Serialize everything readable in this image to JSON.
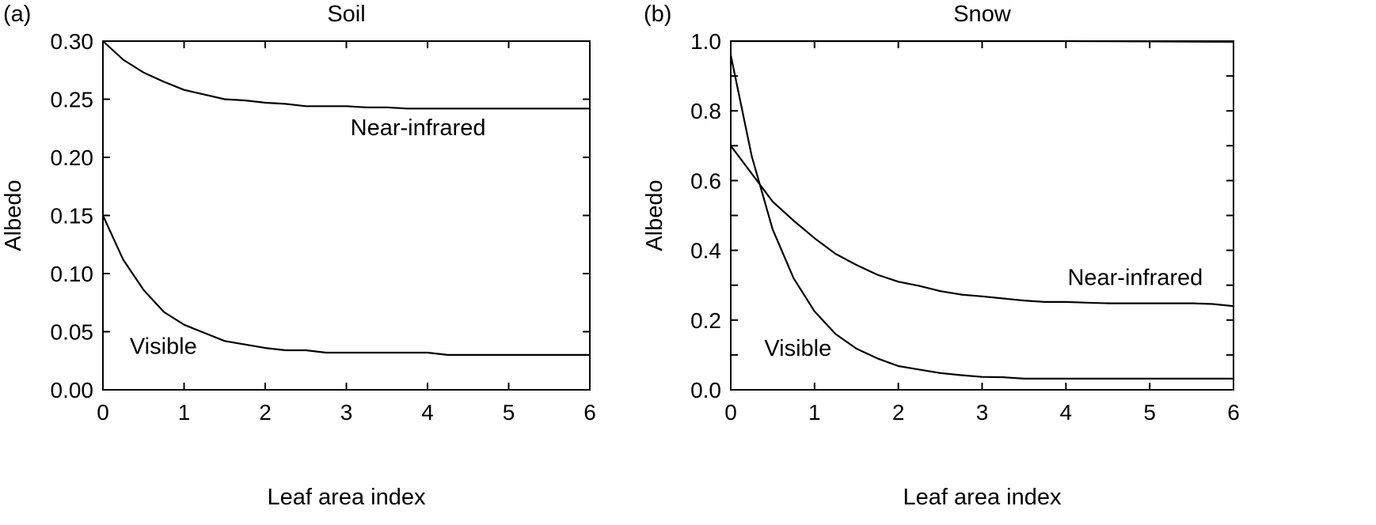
{
  "chart_data": [
    {
      "type": "line",
      "panel_label": "(a)",
      "title": "Soil",
      "xlabel": "Leaf area index",
      "ylabel": "Albedo",
      "xlim": [
        0,
        6
      ],
      "ylim": [
        0,
        0.3
      ],
      "x_ticks": [
        0,
        1,
        2,
        3,
        4,
        5,
        6
      ],
      "x_tick_labels": [
        "0",
        "1",
        "2",
        "3",
        "4",
        "5",
        "6"
      ],
      "y_ticks": [
        0,
        0.05,
        0.1,
        0.15,
        0.2,
        0.25,
        0.3
      ],
      "y_tick_labels": [
        "0.00",
        "0.05",
        "0.10",
        "0.15",
        "0.20",
        "0.25",
        "0.30"
      ],
      "series": [
        {
          "name": "Near-infrared",
          "x": [
            0,
            0.25,
            0.5,
            0.75,
            1,
            1.25,
            1.5,
            1.75,
            2,
            2.25,
            2.5,
            2.75,
            3,
            3.25,
            3.5,
            3.75,
            4,
            4.25,
            4.5,
            4.75,
            5,
            5.25,
            5.5,
            5.75,
            6
          ],
          "y": [
            0.3,
            0.284,
            0.273,
            0.265,
            0.258,
            0.254,
            0.25,
            0.249,
            0.247,
            0.246,
            0.244,
            0.244,
            0.244,
            0.243,
            0.243,
            0.242,
            0.242,
            0.242,
            0.242,
            0.242,
            0.242,
            0.242,
            0.242,
            0.242,
            0.242
          ]
        },
        {
          "name": "Visible",
          "x": [
            0,
            0.25,
            0.5,
            0.75,
            1,
            1.25,
            1.5,
            1.75,
            2,
            2.25,
            2.5,
            2.75,
            3,
            3.25,
            3.5,
            3.75,
            4,
            4.25,
            4.5,
            4.75,
            5,
            5.25,
            5.5,
            5.75,
            6
          ],
          "y": [
            0.15,
            0.112,
            0.086,
            0.067,
            0.056,
            0.049,
            0.042,
            0.039,
            0.036,
            0.034,
            0.034,
            0.032,
            0.032,
            0.032,
            0.032,
            0.032,
            0.032,
            0.03,
            0.03,
            0.03,
            0.03,
            0.03,
            0.03,
            0.03,
            0.03
          ]
        }
      ],
      "annotations": [
        {
          "text": "Near-infrared",
          "x": 3.05,
          "y": 0.219
        },
        {
          "text": "Visible",
          "x": 0.33,
          "y": 0.031
        }
      ]
    },
    {
      "type": "line",
      "panel_label": "(b)",
      "title": "Snow",
      "xlabel": "Leaf area index",
      "ylabel": "Albedo",
      "xlim": [
        0,
        6
      ],
      "ylim": [
        0,
        1.0
      ],
      "x_ticks": [
        0,
        1,
        2,
        3,
        4,
        5,
        6
      ],
      "x_tick_labels": [
        "0",
        "1",
        "2",
        "3",
        "4",
        "5",
        "6"
      ],
      "y_ticks": [
        0,
        0.2,
        0.4,
        0.6,
        0.8,
        1.0
      ],
      "y_tick_labels": [
        "0.0",
        "0.2",
        "0.4",
        "0.6",
        "0.8",
        "1.0"
      ],
      "series": [
        {
          "name": "Near-infrared",
          "x": [
            0,
            0.25,
            0.5,
            0.75,
            1,
            1.25,
            1.5,
            1.75,
            2,
            2.25,
            2.5,
            2.75,
            3,
            3.25,
            3.5,
            3.75,
            4,
            4.25,
            4.5,
            4.75,
            5,
            5.25,
            5.5,
            5.75,
            6
          ],
          "y": [
            0.7,
            0.62,
            0.54,
            0.485,
            0.435,
            0.39,
            0.358,
            0.33,
            0.31,
            0.298,
            0.283,
            0.273,
            0.268,
            0.262,
            0.256,
            0.252,
            0.252,
            0.25,
            0.248,
            0.248,
            0.248,
            0.248,
            0.248,
            0.246,
            0.24
          ]
        },
        {
          "name": "Visible",
          "x": [
            0,
            0.25,
            0.5,
            0.75,
            1,
            1.25,
            1.5,
            1.75,
            2,
            2.25,
            2.5,
            2.75,
            3,
            3.25,
            3.5,
            3.75,
            4,
            4.25,
            4.5,
            4.75,
            5,
            5.25,
            5.5,
            5.75,
            6
          ],
          "y": [
            0.96,
            0.67,
            0.46,
            0.32,
            0.225,
            0.16,
            0.118,
            0.09,
            0.068,
            0.058,
            0.048,
            0.042,
            0.037,
            0.036,
            0.032,
            0.032,
            0.032,
            0.032,
            0.032,
            0.032,
            0.032,
            0.032,
            0.032,
            0.032,
            0.032
          ]
        },
        {
          "name": "",
          "x": [
            0,
            1,
            2,
            3,
            4,
            5,
            6
          ],
          "y": [
            1.0,
            1.0,
            1.0,
            1.0,
            1.0,
            0.999,
            0.998
          ]
        }
      ],
      "annotations": [
        {
          "text": "Near-infrared",
          "x": 4.02,
          "y": 0.3
        },
        {
          "text": "Visible",
          "x": 0.4,
          "y": 0.098
        }
      ]
    }
  ]
}
